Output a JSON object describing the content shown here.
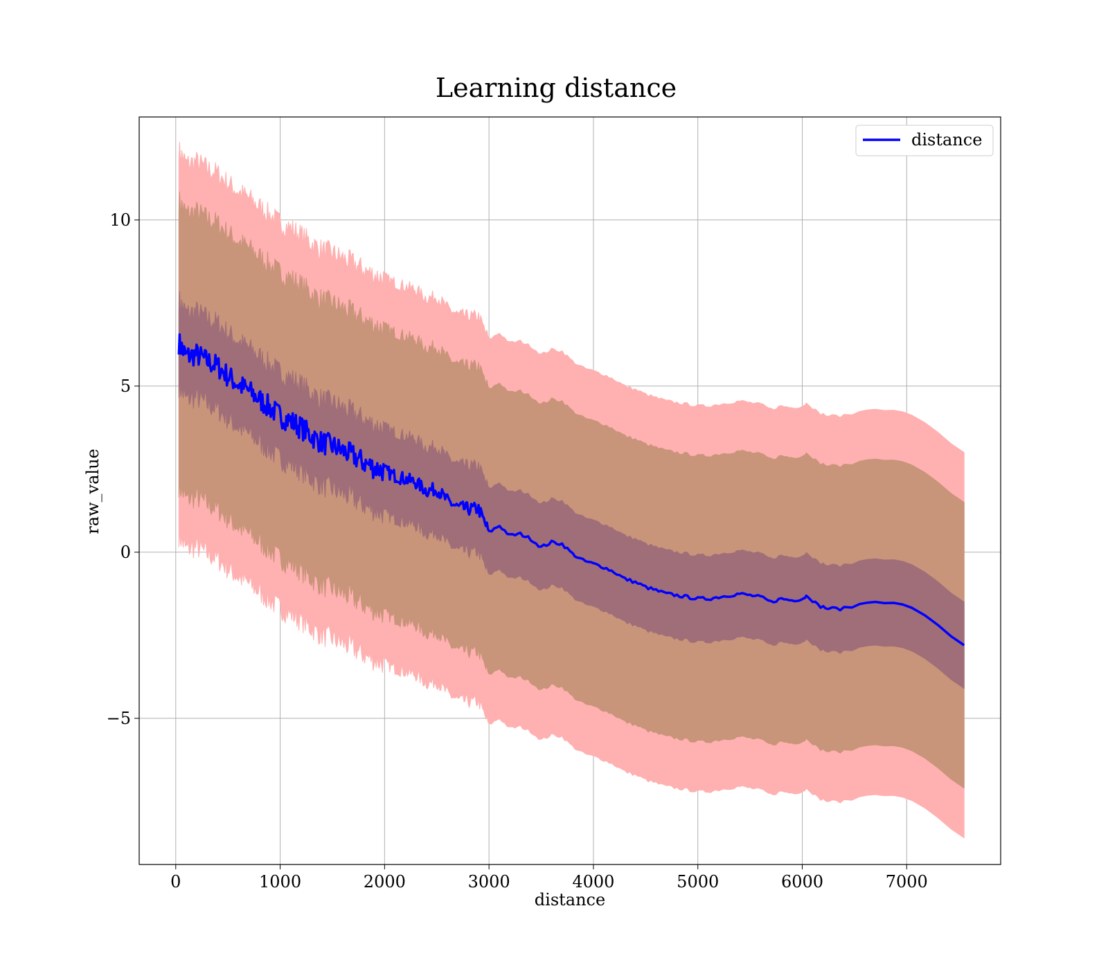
{
  "chart_data": {
    "type": "area",
    "title": "Learning distance",
    "xlabel": "distance",
    "ylabel": "raw_value",
    "xlim": [
      -350,
      7900
    ],
    "ylim": [
      -9.4,
      13.1
    ],
    "x_ticks": [
      0,
      1000,
      2000,
      3000,
      4000,
      5000,
      6000,
      7000
    ],
    "x_tick_labels": [
      "0",
      "1000",
      "2000",
      "3000",
      "4000",
      "5000",
      "6000",
      "7000"
    ],
    "y_ticks": [
      -5,
      0,
      5,
      10
    ],
    "y_tick_labels": [
      "−5",
      "0",
      "5",
      "10"
    ],
    "grid": true,
    "legend": {
      "position": "top-right",
      "entries": [
        "distance"
      ]
    },
    "colors": {
      "line": "#0000ff",
      "outer_band": "#ffb0b0",
      "middle_band": "#c8947a",
      "inner_band": "#a06e78"
    },
    "x": [
      30,
      100,
      200,
      300,
      400,
      500,
      600,
      700,
      800,
      900,
      1000,
      1100,
      1200,
      1300,
      1400,
      1500,
      1600,
      1700,
      1800,
      1900,
      2000,
      2100,
      2200,
      2300,
      2400,
      2500,
      2600,
      2700,
      2800,
      2900,
      3000,
      3100,
      3200,
      3300,
      3400,
      3500,
      3600,
      3700,
      3800,
      3900,
      4000,
      4100,
      4200,
      4300,
      4400,
      4500,
      4600,
      4700,
      4800,
      4900,
      5000,
      5100,
      5200,
      5300,
      5400,
      5500,
      5600,
      5700,
      5800,
      5900,
      6000,
      6050,
      6150,
      6250,
      6400,
      6700,
      7050,
      7550
    ],
    "series": [
      {
        "name": "distance",
        "values": [
          6.3,
          5.9,
          5.95,
          5.75,
          5.6,
          5.3,
          5.05,
          4.85,
          4.6,
          4.35,
          4.1,
          3.95,
          3.75,
          3.5,
          3.3,
          3.2,
          3.05,
          2.9,
          2.7,
          2.55,
          2.45,
          2.3,
          2.2,
          2.1,
          1.85,
          1.9,
          1.55,
          1.35,
          1.3,
          1.3,
          0.6,
          0.8,
          0.5,
          0.55,
          0.4,
          0.15,
          0.3,
          0.25,
          -0.05,
          -0.25,
          -0.35,
          -0.45,
          -0.6,
          -0.8,
          -0.9,
          -1.05,
          -1.15,
          -1.25,
          -1.3,
          -1.35,
          -1.4,
          -1.4,
          -1.35,
          -1.3,
          -1.25,
          -1.3,
          -1.35,
          -1.5,
          -1.4,
          -1.45,
          -1.4,
          -1.3,
          -1.6,
          -1.7,
          -1.7,
          -1.45,
          -1.65,
          -2.8
        ]
      }
    ],
    "bands": [
      {
        "lower_offset": -5.8,
        "upper_offset": 5.8,
        "color": "outer_band"
      },
      {
        "lower_offset": -4.3,
        "upper_offset": 4.3,
        "color": "middle_band"
      },
      {
        "lower_offset": -1.3,
        "upper_offset": 1.3,
        "color": "inner_band"
      }
    ]
  }
}
